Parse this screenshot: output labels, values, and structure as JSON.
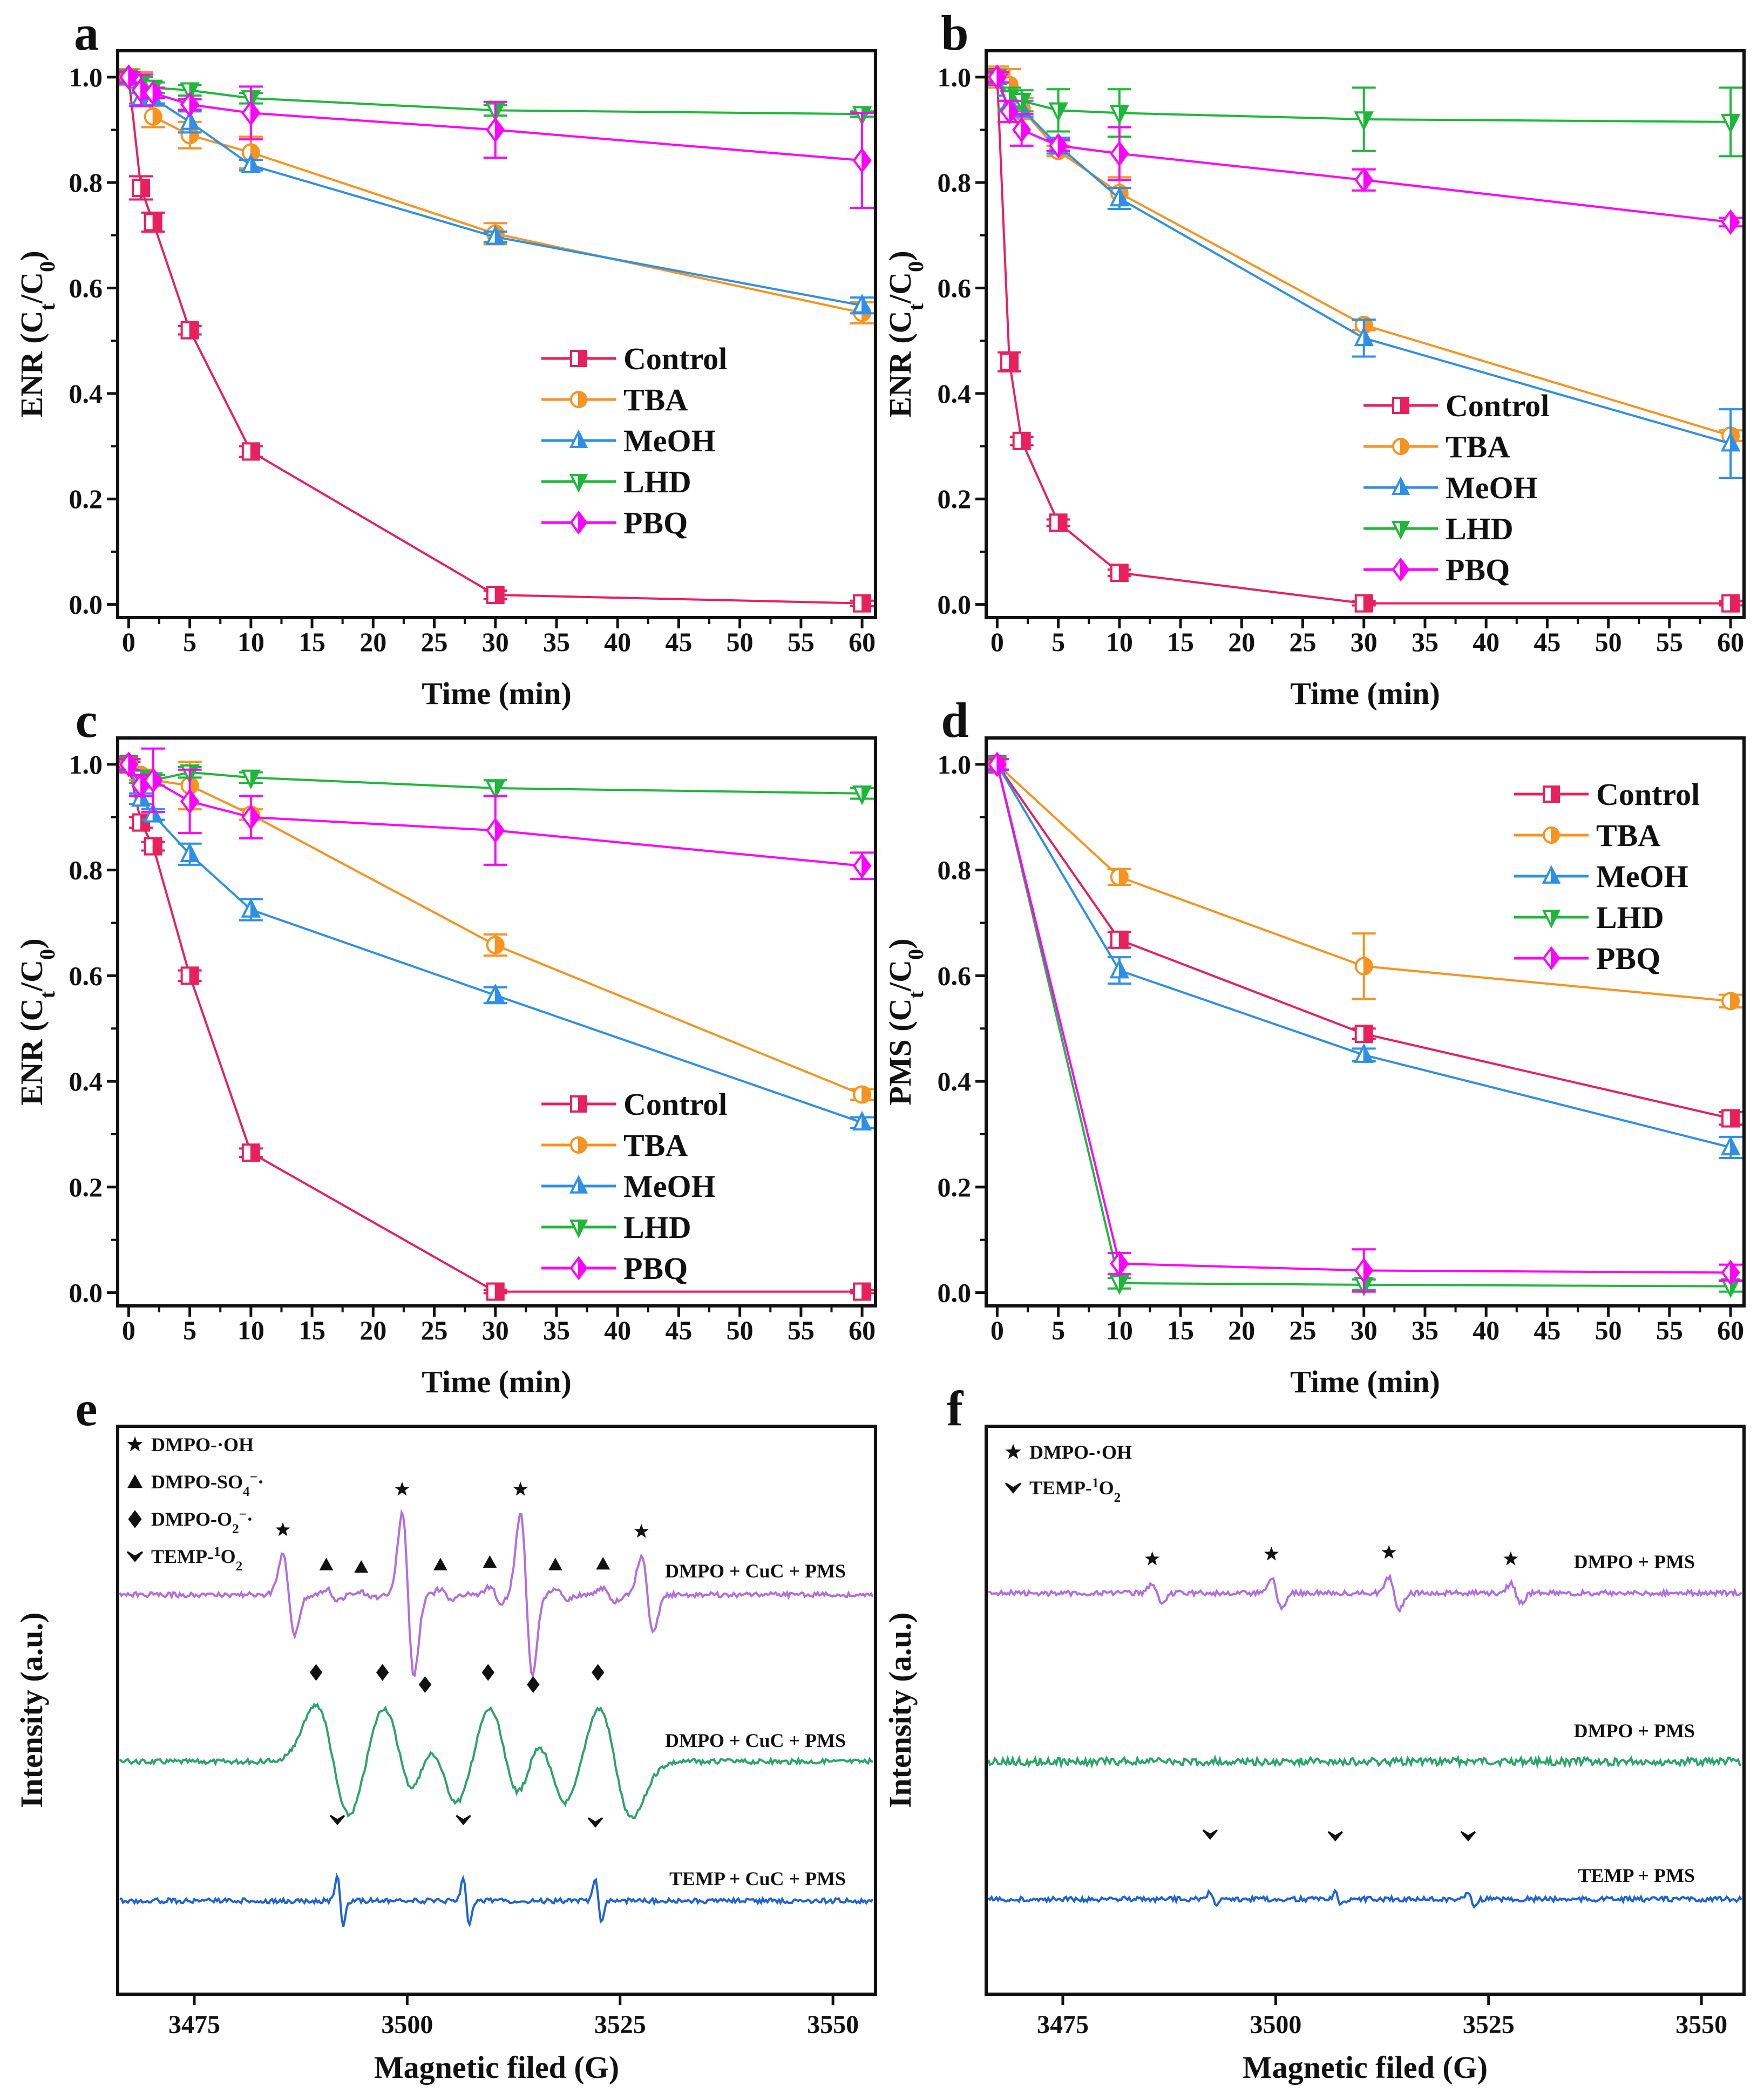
{
  "colors": {
    "Control": "#E8205E",
    "TBA": "#F7931E",
    "MeOH": "#2E8FE8",
    "LHD": "#1DB83A",
    "PBQ": "#FF00FF",
    "trace_purple": "#B06EE0",
    "trace_green": "#2AA468",
    "trace_blue": "#1C62D8"
  },
  "chart_data": [
    {
      "panel": "a",
      "type": "line",
      "xlabel": "Time (min)",
      "ylabel": [
        {
          "t": "ENR (C"
        },
        {
          "t": "t",
          "sub": true
        },
        {
          "t": "/C"
        },
        {
          "t": "0",
          "sub": true
        },
        {
          "t": ")"
        }
      ],
      "xlim": [
        -0.9,
        61.1
      ],
      "ylim": [
        -0.025,
        1.05
      ],
      "xticks": [
        0,
        5,
        10,
        15,
        20,
        25,
        30,
        35,
        40,
        45,
        50,
        55,
        60
      ],
      "yticks": [
        "0.0",
        "0.2",
        "0.4",
        "0.6",
        "0.8",
        "1.0"
      ],
      "legend_placement": "center-right",
      "x": [
        0,
        1,
        2,
        5,
        10,
        30,
        60
      ],
      "series": [
        {
          "name": "Control",
          "marker": "square",
          "values": [
            1,
            0.79,
            0.725,
            0.52,
            0.29,
            0.018,
            0.002
          ],
          "err": [
            0.005,
            0.022,
            0.018,
            0.008,
            0.01,
            0.008,
            0.005
          ]
        },
        {
          "name": "TBA",
          "marker": "circle",
          "values": [
            1,
            0.99,
            0.925,
            0.89,
            0.857,
            0.703,
            0.553
          ],
          "err": [
            0.015,
            0.02,
            0.02,
            0.025,
            0.03,
            0.02,
            0.02
          ]
        },
        {
          "name": "MeOH",
          "marker": "triangle-up",
          "values": [
            1,
            0.96,
            0.96,
            0.915,
            0.833,
            0.697,
            0.567
          ],
          "err": [
            0.01,
            0.01,
            0.01,
            0.02,
            0.01,
            0.01,
            0.015
          ]
        },
        {
          "name": "LHD",
          "marker": "triangle-down",
          "values": [
            1,
            0.99,
            0.98,
            0.975,
            0.96,
            0.937,
            0.93
          ],
          "err": [
            0.01,
            0.01,
            0.01,
            0.01,
            0.01,
            0.01,
            0.005
          ]
        },
        {
          "name": "PBQ",
          "marker": "diamond",
          "values": [
            1,
            0.975,
            0.97,
            0.948,
            0.932,
            0.9,
            0.842
          ],
          "err": [
            0.01,
            0.03,
            0.01,
            0.01,
            0.05,
            0.053,
            0.09
          ]
        }
      ]
    },
    {
      "panel": "b",
      "type": "line",
      "xlabel": "Time (min)",
      "ylabel": [
        {
          "t": "ENR (C"
        },
        {
          "t": "t",
          "sub": true
        },
        {
          "t": "/C"
        },
        {
          "t": "0",
          "sub": true
        },
        {
          "t": ")"
        }
      ],
      "xlim": [
        -0.9,
        61.1
      ],
      "ylim": [
        -0.025,
        1.05
      ],
      "xticks": [
        0,
        5,
        10,
        15,
        20,
        25,
        30,
        35,
        40,
        45,
        50,
        55,
        60
      ],
      "yticks": [
        "0.0",
        "0.2",
        "0.4",
        "0.6",
        "0.8",
        "1.0"
      ],
      "legend_placement": "center-right",
      "x": [
        0,
        1,
        2,
        5,
        10,
        30,
        60
      ],
      "series": [
        {
          "name": "Control",
          "marker": "square",
          "values": [
            1,
            0.46,
            0.31,
            0.155,
            0.06,
            0.002,
            0.002
          ],
          "err": [
            0.005,
            0.018,
            0.008,
            0.006,
            0.006,
            0.004,
            0.004
          ]
        },
        {
          "name": "TBA",
          "marker": "circle",
          "values": [
            1,
            0.985,
            0.94,
            0.86,
            0.78,
            0.53,
            0.32
          ],
          "err": [
            0.02,
            0.03,
            0.02,
            0.01,
            0.03,
            0.01,
            0.01
          ]
        },
        {
          "name": "MeOH",
          "marker": "triangle-up",
          "values": [
            1,
            0.95,
            0.94,
            0.87,
            0.77,
            0.505,
            0.305
          ],
          "err": [
            0.01,
            0.015,
            0.015,
            0.015,
            0.02,
            0.035,
            0.065
          ]
        },
        {
          "name": "LHD",
          "marker": "triangle-down",
          "values": [
            1,
            0.96,
            0.955,
            0.937,
            0.932,
            0.92,
            0.915
          ],
          "err": [
            0.01,
            0.02,
            0.02,
            0.04,
            0.045,
            0.06,
            0.065
          ]
        },
        {
          "name": "PBQ",
          "marker": "diamond",
          "values": [
            1,
            0.935,
            0.9,
            0.87,
            0.855,
            0.805,
            0.725
          ],
          "err": [
            0.01,
            0.02,
            0.03,
            0.01,
            0.05,
            0.02,
            0.008
          ]
        }
      ]
    },
    {
      "panel": "c",
      "type": "line",
      "xlabel": "Time (min)",
      "ylabel": [
        {
          "t": "ENR (C"
        },
        {
          "t": "t",
          "sub": true
        },
        {
          "t": "/C"
        },
        {
          "t": "0",
          "sub": true
        },
        {
          "t": ")"
        }
      ],
      "xlim": [
        -0.9,
        61.1
      ],
      "ylim": [
        -0.025,
        1.05
      ],
      "xticks": [
        0,
        5,
        10,
        15,
        20,
        25,
        30,
        35,
        40,
        45,
        50,
        55,
        60
      ],
      "yticks": [
        "0.0",
        "0.2",
        "0.4",
        "0.6",
        "0.8",
        "1.0"
      ],
      "legend_placement": "bottom-right",
      "x": [
        0,
        1,
        2,
        5,
        10,
        30,
        60
      ],
      "series": [
        {
          "name": "Control",
          "marker": "square",
          "values": [
            1,
            0.89,
            0.845,
            0.6,
            0.265,
            0.002,
            0.002
          ],
          "err": [
            0.005,
            0.01,
            0.008,
            0.01,
            0.008,
            0.003,
            0.003
          ]
        },
        {
          "name": "TBA",
          "marker": "circle",
          "values": [
            1,
            0.98,
            0.97,
            0.96,
            0.905,
            0.658,
            0.375
          ],
          "err": [
            0.01,
            0.01,
            0.01,
            0.045,
            0.01,
            0.02,
            0.01
          ]
        },
        {
          "name": "MeOH",
          "marker": "triangle-up",
          "values": [
            1,
            0.935,
            0.905,
            0.83,
            0.725,
            0.563,
            0.322
          ],
          "err": [
            0.01,
            0.01,
            0.01,
            0.02,
            0.02,
            0.015,
            0.01
          ]
        },
        {
          "name": "LHD",
          "marker": "triangle-down",
          "values": [
            1,
            0.975,
            0.97,
            0.985,
            0.975,
            0.955,
            0.945
          ],
          "err": [
            0.01,
            0.01,
            0.01,
            0.01,
            0.01,
            0.015,
            0.01
          ]
        },
        {
          "name": "PBQ",
          "marker": "diamond",
          "values": [
            1,
            0.96,
            0.97,
            0.93,
            0.9,
            0.875,
            0.808
          ],
          "err": [
            0.01,
            0.02,
            0.06,
            0.06,
            0.04,
            0.065,
            0.025
          ]
        }
      ]
    },
    {
      "panel": "d",
      "type": "line",
      "xlabel": "Time (min)",
      "ylabel": [
        {
          "t": "PMS (C"
        },
        {
          "t": "t",
          "sub": true
        },
        {
          "t": "/C"
        },
        {
          "t": "0",
          "sub": true
        },
        {
          "t": ")"
        }
      ],
      "xlim": [
        -0.9,
        61.1
      ],
      "ylim": [
        -0.025,
        1.05
      ],
      "xticks": [
        0,
        5,
        10,
        15,
        20,
        25,
        30,
        35,
        40,
        45,
        50,
        55,
        60
      ],
      "yticks": [
        "0.0",
        "0.2",
        "0.4",
        "0.6",
        "0.8",
        "1.0"
      ],
      "legend_placement": "top-right",
      "x": [
        0,
        10,
        30,
        60
      ],
      "series": [
        {
          "name": "Control",
          "marker": "square",
          "values": [
            1,
            0.668,
            0.49,
            0.33
          ],
          "err": [
            0.01,
            0.015,
            0.01,
            0.012
          ]
        },
        {
          "name": "TBA",
          "marker": "circle",
          "values": [
            1,
            0.787,
            0.618,
            0.552
          ],
          "err": [
            0.01,
            0.015,
            0.062,
            0.012
          ]
        },
        {
          "name": "MeOH",
          "marker": "triangle-up",
          "values": [
            1,
            0.61,
            0.45,
            0.275
          ],
          "err": [
            0.01,
            0.025,
            0.012,
            0.02
          ]
        },
        {
          "name": "LHD",
          "marker": "triangle-down",
          "values": [
            1,
            0.018,
            0.015,
            0.012
          ],
          "err": [
            0.01,
            0.01,
            0.01,
            0.01
          ]
        },
        {
          "name": "PBQ",
          "marker": "diamond",
          "values": [
            1,
            0.055,
            0.042,
            0.038
          ],
          "err": [
            0.01,
            0.02,
            0.04,
            0.015
          ]
        }
      ]
    },
    {
      "panel": "e",
      "type": "line",
      "xlabel": "Magnetic filed (G)",
      "ylabel": [
        {
          "t": "Intensity (a.u.)"
        }
      ],
      "xlim": [
        3466,
        3555
      ],
      "xticks": [
        3475,
        3500,
        3525,
        3550
      ],
      "legend_placement": "top-left",
      "legend": [
        {
          "symbol": "star",
          "parts": [
            {
              "t": "DMPO-·OH"
            }
          ]
        },
        {
          "symbol": "triangle",
          "parts": [
            {
              "t": "DMPO-SO"
            },
            {
              "t": "4",
              "sub": true
            },
            {
              "t": "−",
              "sup": true
            },
            {
              "t": "·"
            }
          ]
        },
        {
          "symbol": "diamond",
          "parts": [
            {
              "t": "DMPO-O"
            },
            {
              "t": "2",
              "sub": true
            },
            {
              "t": "−",
              "sup": true
            },
            {
              "t": "·"
            }
          ]
        },
        {
          "symbol": "check",
          "parts": [
            {
              "t": "TEMP-"
            },
            {
              "t": "1",
              "sup": true
            },
            {
              "t": "O"
            },
            {
              "t": "2",
              "sub": true
            }
          ]
        }
      ],
      "traces": [
        {
          "label": "DMPO + CuC + PMS",
          "color": "trace_purple",
          "width": 0.7,
          "peaks": [
            {
              "pos": 3485.4,
              "marker": "star",
              "amp": 0.5
            },
            {
              "pos": 3499.4,
              "marker": "star",
              "amp": 1.0
            },
            {
              "pos": 3513.3,
              "marker": "star",
              "amp": 1.0
            },
            {
              "pos": 3527.5,
              "marker": "star",
              "amp": 0.48
            },
            {
              "pos": 3490.5,
              "marker": "triangle",
              "amp": 0.07
            },
            {
              "pos": 3494.6,
              "marker": "triangle",
              "amp": 0.04
            },
            {
              "pos": 3503.9,
              "marker": "triangle",
              "amp": 0.07
            },
            {
              "pos": 3509.7,
              "marker": "triangle",
              "amp": 0.1
            },
            {
              "pos": 3517.4,
              "marker": "triangle",
              "amp": 0.07
            },
            {
              "pos": 3523.0,
              "marker": "triangle",
              "amp": 0.08
            }
          ]
        },
        {
          "label": "DMPO + CuC + PMS",
          "color": "trace_green",
          "width": 2.0,
          "peaks": [
            {
              "pos": 3489.3,
              "marker": "diamond",
              "amp": 0.7
            },
            {
              "pos": 3497.1,
              "marker": "diamond",
              "amp": 0.7
            },
            {
              "pos": 3502.1,
              "marker": "diamond",
              "amp": 0.55
            },
            {
              "pos": 3509.5,
              "marker": "diamond",
              "amp": 0.7
            },
            {
              "pos": 3514.8,
              "marker": "diamond",
              "amp": 0.55
            },
            {
              "pos": 3522.4,
              "marker": "diamond",
              "amp": 0.7
            }
          ]
        },
        {
          "label": "TEMP + CuC + PMS",
          "color": "trace_blue",
          "width": 0.35,
          "peaks": [
            {
              "pos": 3491.8,
              "marker": "check",
              "amp": 0.3
            },
            {
              "pos": 3506.6,
              "marker": "check",
              "amp": 0.3
            },
            {
              "pos": 3522.1,
              "marker": "check",
              "amp": 0.27
            }
          ]
        }
      ]
    },
    {
      "panel": "f",
      "type": "line",
      "xlabel": "Magnetic filed (G)",
      "ylabel": [
        {
          "t": "Intensity (a.u.)"
        }
      ],
      "xlim": [
        3466,
        3555
      ],
      "xticks": [
        3475,
        3500,
        3525,
        3550
      ],
      "legend_placement": "top-left",
      "legend": [
        {
          "symbol": "star",
          "parts": [
            {
              "t": "DMPO-·OH"
            }
          ]
        },
        {
          "symbol": "check",
          "parts": [
            {
              "t": "TEMP-"
            },
            {
              "t": "1",
              "sup": true
            },
            {
              "t": "O"
            },
            {
              "t": "2",
              "sub": true
            }
          ]
        }
      ],
      "traces": [
        {
          "label": "DMPO + PMS",
          "color": "trace_purple",
          "width": 0.6,
          "peaks": [
            {
              "pos": 3485.5,
              "marker": "star",
              "amp": 0.12
            },
            {
              "pos": 3499.5,
              "marker": "star",
              "amp": 0.18
            },
            {
              "pos": 3513.3,
              "marker": "star",
              "amp": 0.2
            },
            {
              "pos": 3527.6,
              "marker": "star",
              "amp": 0.12
            }
          ]
        },
        {
          "label": "DMPO + PMS",
          "color": "trace_green",
          "width": 1,
          "peaks": []
        },
        {
          "label": "TEMP + PMS",
          "color": "trace_blue",
          "width": 0.35,
          "peaks": [
            {
              "pos": 3492.3,
              "marker": "check",
              "amp": 0.1
            },
            {
              "pos": 3507.0,
              "marker": "check",
              "amp": 0.08
            },
            {
              "pos": 3522.6,
              "marker": "check",
              "amp": 0.08
            }
          ]
        }
      ]
    }
  ]
}
